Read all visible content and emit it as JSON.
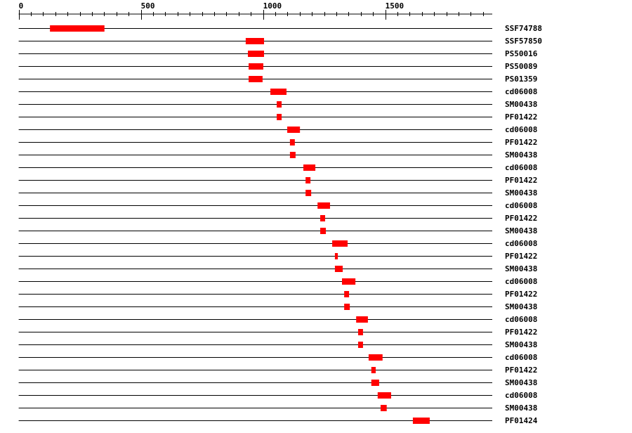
{
  "colors": {
    "domain": "#ff0000",
    "line": "#000000"
  },
  "axis": {
    "min": 0,
    "max": 1938,
    "tick_labels": [
      "0",
      "500",
      "1000",
      "1500"
    ],
    "label_values": [
      0,
      500,
      1000,
      1500
    ],
    "minor_step": 50
  },
  "rows": [
    {
      "label": "SSF74788",
      "start": 128,
      "end": 351
    },
    {
      "label": "SSF57850",
      "start": 929,
      "end": 1004
    },
    {
      "label": "PS50016",
      "start": 938,
      "end": 1004
    },
    {
      "label": "PS50089",
      "start": 941,
      "end": 1001
    },
    {
      "label": "PS01359",
      "start": 941,
      "end": 998
    },
    {
      "label": "cd06008",
      "start": 1030,
      "end": 1096
    },
    {
      "label": "SM00438",
      "start": 1056,
      "end": 1076
    },
    {
      "label": "PF01422",
      "start": 1056,
      "end": 1076
    },
    {
      "label": "cd06008",
      "start": 1099,
      "end": 1151
    },
    {
      "label": "PF01422",
      "start": 1110,
      "end": 1130
    },
    {
      "label": "SM00438",
      "start": 1110,
      "end": 1133
    },
    {
      "label": "cd06008",
      "start": 1165,
      "end": 1214
    },
    {
      "label": "PF01422",
      "start": 1174,
      "end": 1194
    },
    {
      "label": "SM00438",
      "start": 1174,
      "end": 1197
    },
    {
      "label": "cd06008",
      "start": 1223,
      "end": 1274
    },
    {
      "label": "PF01422",
      "start": 1234,
      "end": 1254
    },
    {
      "label": "SM00438",
      "start": 1234,
      "end": 1257
    },
    {
      "label": "cd06008",
      "start": 1283,
      "end": 1346
    },
    {
      "label": "PF01422",
      "start": 1294,
      "end": 1306
    },
    {
      "label": "SM00438",
      "start": 1294,
      "end": 1326
    },
    {
      "label": "cd06008",
      "start": 1323,
      "end": 1378
    },
    {
      "label": "PF01422",
      "start": 1332,
      "end": 1352
    },
    {
      "label": "SM00438",
      "start": 1332,
      "end": 1355
    },
    {
      "label": "cd06008",
      "start": 1381,
      "end": 1429
    },
    {
      "label": "PF01422",
      "start": 1389,
      "end": 1409
    },
    {
      "label": "SM00438",
      "start": 1389,
      "end": 1409
    },
    {
      "label": "cd06008",
      "start": 1432,
      "end": 1489
    },
    {
      "label": "PF01422",
      "start": 1443,
      "end": 1461
    },
    {
      "label": "SM00438",
      "start": 1443,
      "end": 1475
    },
    {
      "label": "cd06008",
      "start": 1469,
      "end": 1524
    },
    {
      "label": "SM00438",
      "start": 1481,
      "end": 1506
    },
    {
      "label": "PF01424",
      "start": 1613,
      "end": 1682
    }
  ]
}
